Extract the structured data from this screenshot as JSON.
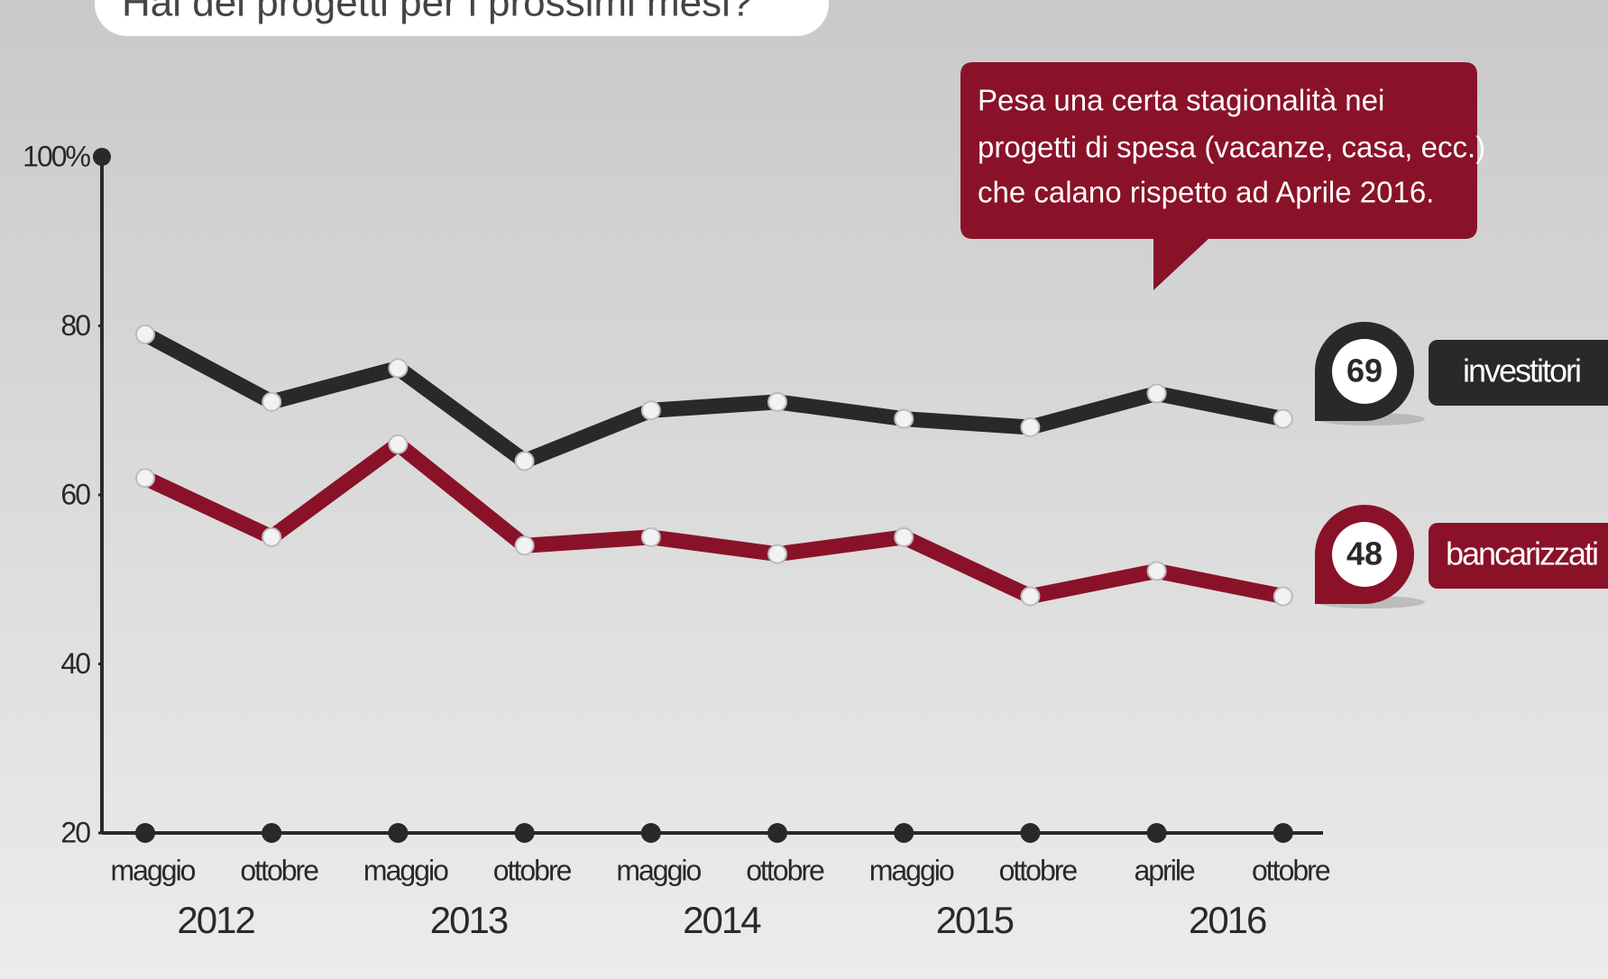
{
  "chart_data": {
    "type": "line",
    "title": "Hai dei progetti per i prossimi mesi?",
    "annotation": [
      "Pesa una certa stagionalità nei",
      "progetti di spesa (vacanze, casa, ecc.)",
      "che calano rispetto ad Aprile 2016."
    ],
    "categories": [
      "maggio",
      "ottobre",
      "maggio",
      "ottobre",
      "maggio",
      "ottobre",
      "maggio",
      "ottobre",
      "aprile",
      "ottobre"
    ],
    "years": [
      "2012",
      "2013",
      "2014",
      "2015",
      "2016"
    ],
    "series": [
      {
        "name": "investitori",
        "color": "#2b2828",
        "values": [
          79,
          71,
          75,
          64,
          70,
          71,
          69,
          68,
          72,
          69
        ]
      },
      {
        "name": "bancarizzati",
        "color": "#8a1228",
        "values": [
          62,
          55,
          66,
          54,
          55,
          53,
          55,
          48,
          51,
          48
        ]
      }
    ],
    "ylim": [
      20,
      100
    ],
    "yticks": [
      20,
      40,
      60,
      80,
      {
        "value": 100,
        "label": "100%"
      }
    ]
  }
}
